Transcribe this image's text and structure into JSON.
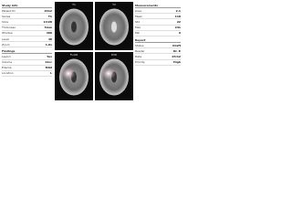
{
  "left": {
    "title": "Study Info",
    "rows": [
      {
        "label": "Patient ID",
        "value": "0412"
      },
      {
        "label": "Series",
        "value": "T1"
      },
      {
        "label": "Slice",
        "value": "14/28"
      },
      {
        "label": "Thickness",
        "value": "5mm"
      },
      {
        "label": "Window",
        "value": "400"
      },
      {
        "label": "Level",
        "value": "40"
      },
      {
        "label": "Zoom",
        "value": "1.0x"
      }
    ],
    "section": "Findings",
    "rows2": [
      {
        "label": "Lesion",
        "value": "Yes"
      },
      {
        "label": "Volume",
        "value": "12cc"
      },
      {
        "label": "Edema",
        "value": "Mild"
      },
      {
        "label": "Location",
        "value": "L"
      }
    ]
  },
  "views": [
    {
      "label": "T1"
    },
    {
      "label": "T2"
    },
    {
      "label": "FLAIR"
    },
    {
      "label": "DWI"
    }
  ],
  "right": {
    "title": "Measurements",
    "rows": [
      {
        "label": "Area",
        "value": "2.1"
      },
      {
        "label": "Mean",
        "value": "118"
      },
      {
        "label": "Std",
        "value": "22"
      },
      {
        "label": "Max",
        "value": "241"
      },
      {
        "label": "Min",
        "value": "9"
      }
    ],
    "section": "Report",
    "rows2": [
      {
        "label": "Status",
        "value": "Draft"
      },
      {
        "label": "Reader",
        "value": "Dr. K"
      },
      {
        "label": "Date",
        "value": "03/12"
      },
      {
        "label": "Priority",
        "value": "High"
      }
    ]
  }
}
